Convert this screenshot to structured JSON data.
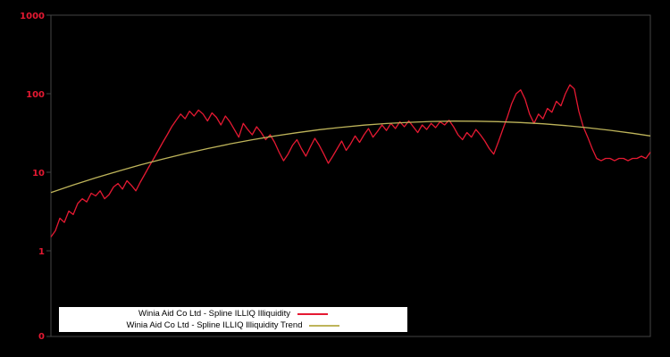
{
  "chart": {
    "background": "#000000",
    "frame_color": "#444444",
    "tick_color": "#e51932",
    "legend_background": "#ffffff"
  },
  "chart_data": {
    "type": "line",
    "yscale": "log",
    "ylim": [
      0.1,
      1000
    ],
    "yticks": [
      "1000",
      "100",
      "10",
      "1",
      "0"
    ],
    "xticks": [],
    "grid": false,
    "legend_position": "bottom-center",
    "x_points": 135,
    "series": [
      {
        "name": "Winia Aid Co Ltd - Spline ILLIQ Illiquidity",
        "color": "#e51932",
        "values": [
          1.5,
          1.8,
          2.6,
          2.3,
          3.2,
          2.9,
          4.0,
          4.6,
          4.2,
          5.4,
          5.0,
          5.8,
          4.6,
          5.2,
          6.5,
          7.2,
          6.1,
          7.8,
          6.8,
          5.8,
          7.5,
          9.5,
          12,
          15,
          19,
          24,
          30,
          38,
          46,
          55,
          48,
          60,
          52,
          62,
          55,
          45,
          57,
          50,
          40,
          52,
          44,
          35,
          28,
          42,
          35,
          30,
          38,
          32,
          26,
          30,
          24,
          18,
          14,
          17,
          22,
          26,
          20,
          16,
          21,
          27,
          22,
          17,
          13,
          16,
          20,
          25,
          19,
          23,
          29,
          24,
          30,
          36,
          28,
          33,
          40,
          34,
          42,
          36,
          44,
          38,
          45,
          38,
          32,
          40,
          35,
          42,
          37,
          44,
          40,
          46,
          38,
          30,
          26,
          32,
          28,
          35,
          30,
          25,
          20,
          17,
          24,
          35,
          50,
          75,
          100,
          112,
          85,
          55,
          42,
          55,
          48,
          65,
          58,
          80,
          70,
          100,
          130,
          115,
          60,
          38,
          28,
          20,
          15,
          14,
          15,
          15,
          14,
          15,
          15,
          14,
          15,
          15,
          16,
          15,
          18
        ]
      },
      {
        "name": "Winia Aid Co Ltd - Spline ILLIQ Illiquidity Trend",
        "color": "#beb45a",
        "x_index": [
          0,
          5,
          10,
          15,
          20,
          25,
          30,
          35,
          40,
          45,
          50,
          55,
          60,
          65,
          70,
          75,
          80,
          85,
          90,
          95,
          100,
          105,
          110,
          115,
          120,
          125,
          130,
          134
        ],
        "values": [
          5.5,
          6.9,
          8.5,
          10.3,
          12.4,
          14.7,
          17.3,
          20.0,
          22.9,
          25.9,
          28.9,
          31.9,
          34.8,
          37.4,
          39.8,
          41.7,
          43.2,
          44.3,
          44.8,
          44.7,
          44.1,
          43.0,
          41.4,
          39.3,
          36.9,
          34.2,
          31.4,
          29.0
        ]
      }
    ]
  }
}
